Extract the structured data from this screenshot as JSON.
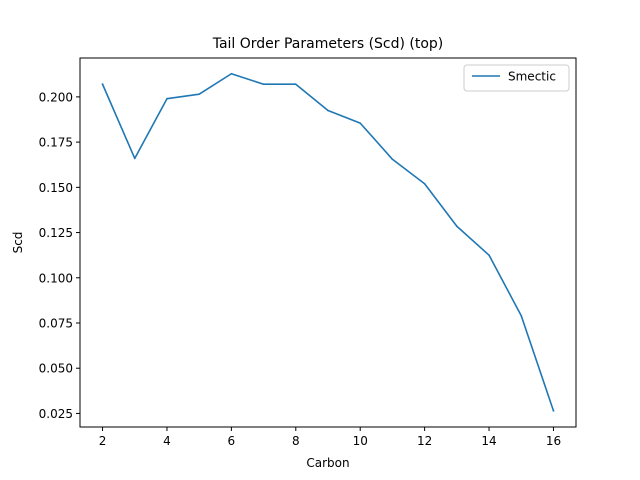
{
  "chart_data": {
    "type": "line",
    "title": "Tail Order Parameters (Scd) (top)",
    "xlabel": "Carbon",
    "ylabel": "Scd",
    "xlim": [
      1.3,
      16.7
    ],
    "ylim": [
      0.0175,
      0.2215
    ],
    "xticks": [
      2,
      4,
      6,
      8,
      10,
      12,
      14,
      16
    ],
    "yticks": [
      0.025,
      0.05,
      0.075,
      0.1,
      0.125,
      0.15,
      0.175,
      0.2
    ],
    "ytick_labels": [
      "0.025",
      "0.050",
      "0.075",
      "0.100",
      "0.125",
      "0.150",
      "0.175",
      "0.200"
    ],
    "grid": false,
    "legend_position": "top-right",
    "series": [
      {
        "name": "Smectic",
        "color": "#1f77b4",
        "x": [
          2,
          3,
          4,
          5,
          6,
          7,
          8,
          9,
          10,
          11,
          12,
          13,
          14,
          15,
          16
        ],
        "y": [
          0.207,
          0.166,
          0.199,
          0.2015,
          0.2128,
          0.207,
          0.207,
          0.1925,
          0.1855,
          0.1655,
          0.152,
          0.1285,
          0.1125,
          0.079,
          0.0265
        ]
      }
    ]
  }
}
